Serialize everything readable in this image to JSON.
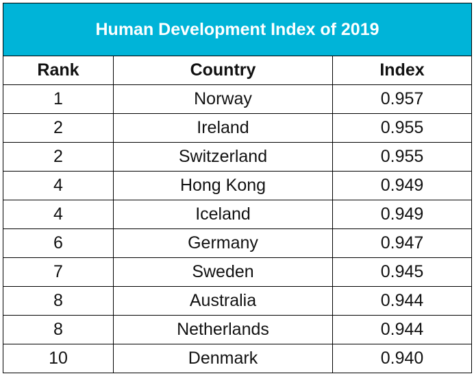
{
  "table": {
    "title": "Human Development Index of 2019",
    "colors": {
      "header_bg": "#00b4d8",
      "header_text": "#ffffff"
    },
    "columns": [
      "Rank",
      "Country",
      "Index"
    ],
    "rows": [
      [
        "1",
        "Norway",
        "0.957"
      ],
      [
        "2",
        "Ireland",
        "0.955"
      ],
      [
        "2",
        "Switzerland",
        "0.955"
      ],
      [
        "4",
        "Hong Kong",
        "0.949"
      ],
      [
        "4",
        "Iceland",
        "0.949"
      ],
      [
        "6",
        "Germany",
        "0.947"
      ],
      [
        "7",
        "Sweden",
        "0.945"
      ],
      [
        "8",
        "Australia",
        "0.944"
      ],
      [
        "8",
        "Netherlands",
        "0.944"
      ],
      [
        "10",
        "Denmark",
        "0.940"
      ]
    ]
  }
}
